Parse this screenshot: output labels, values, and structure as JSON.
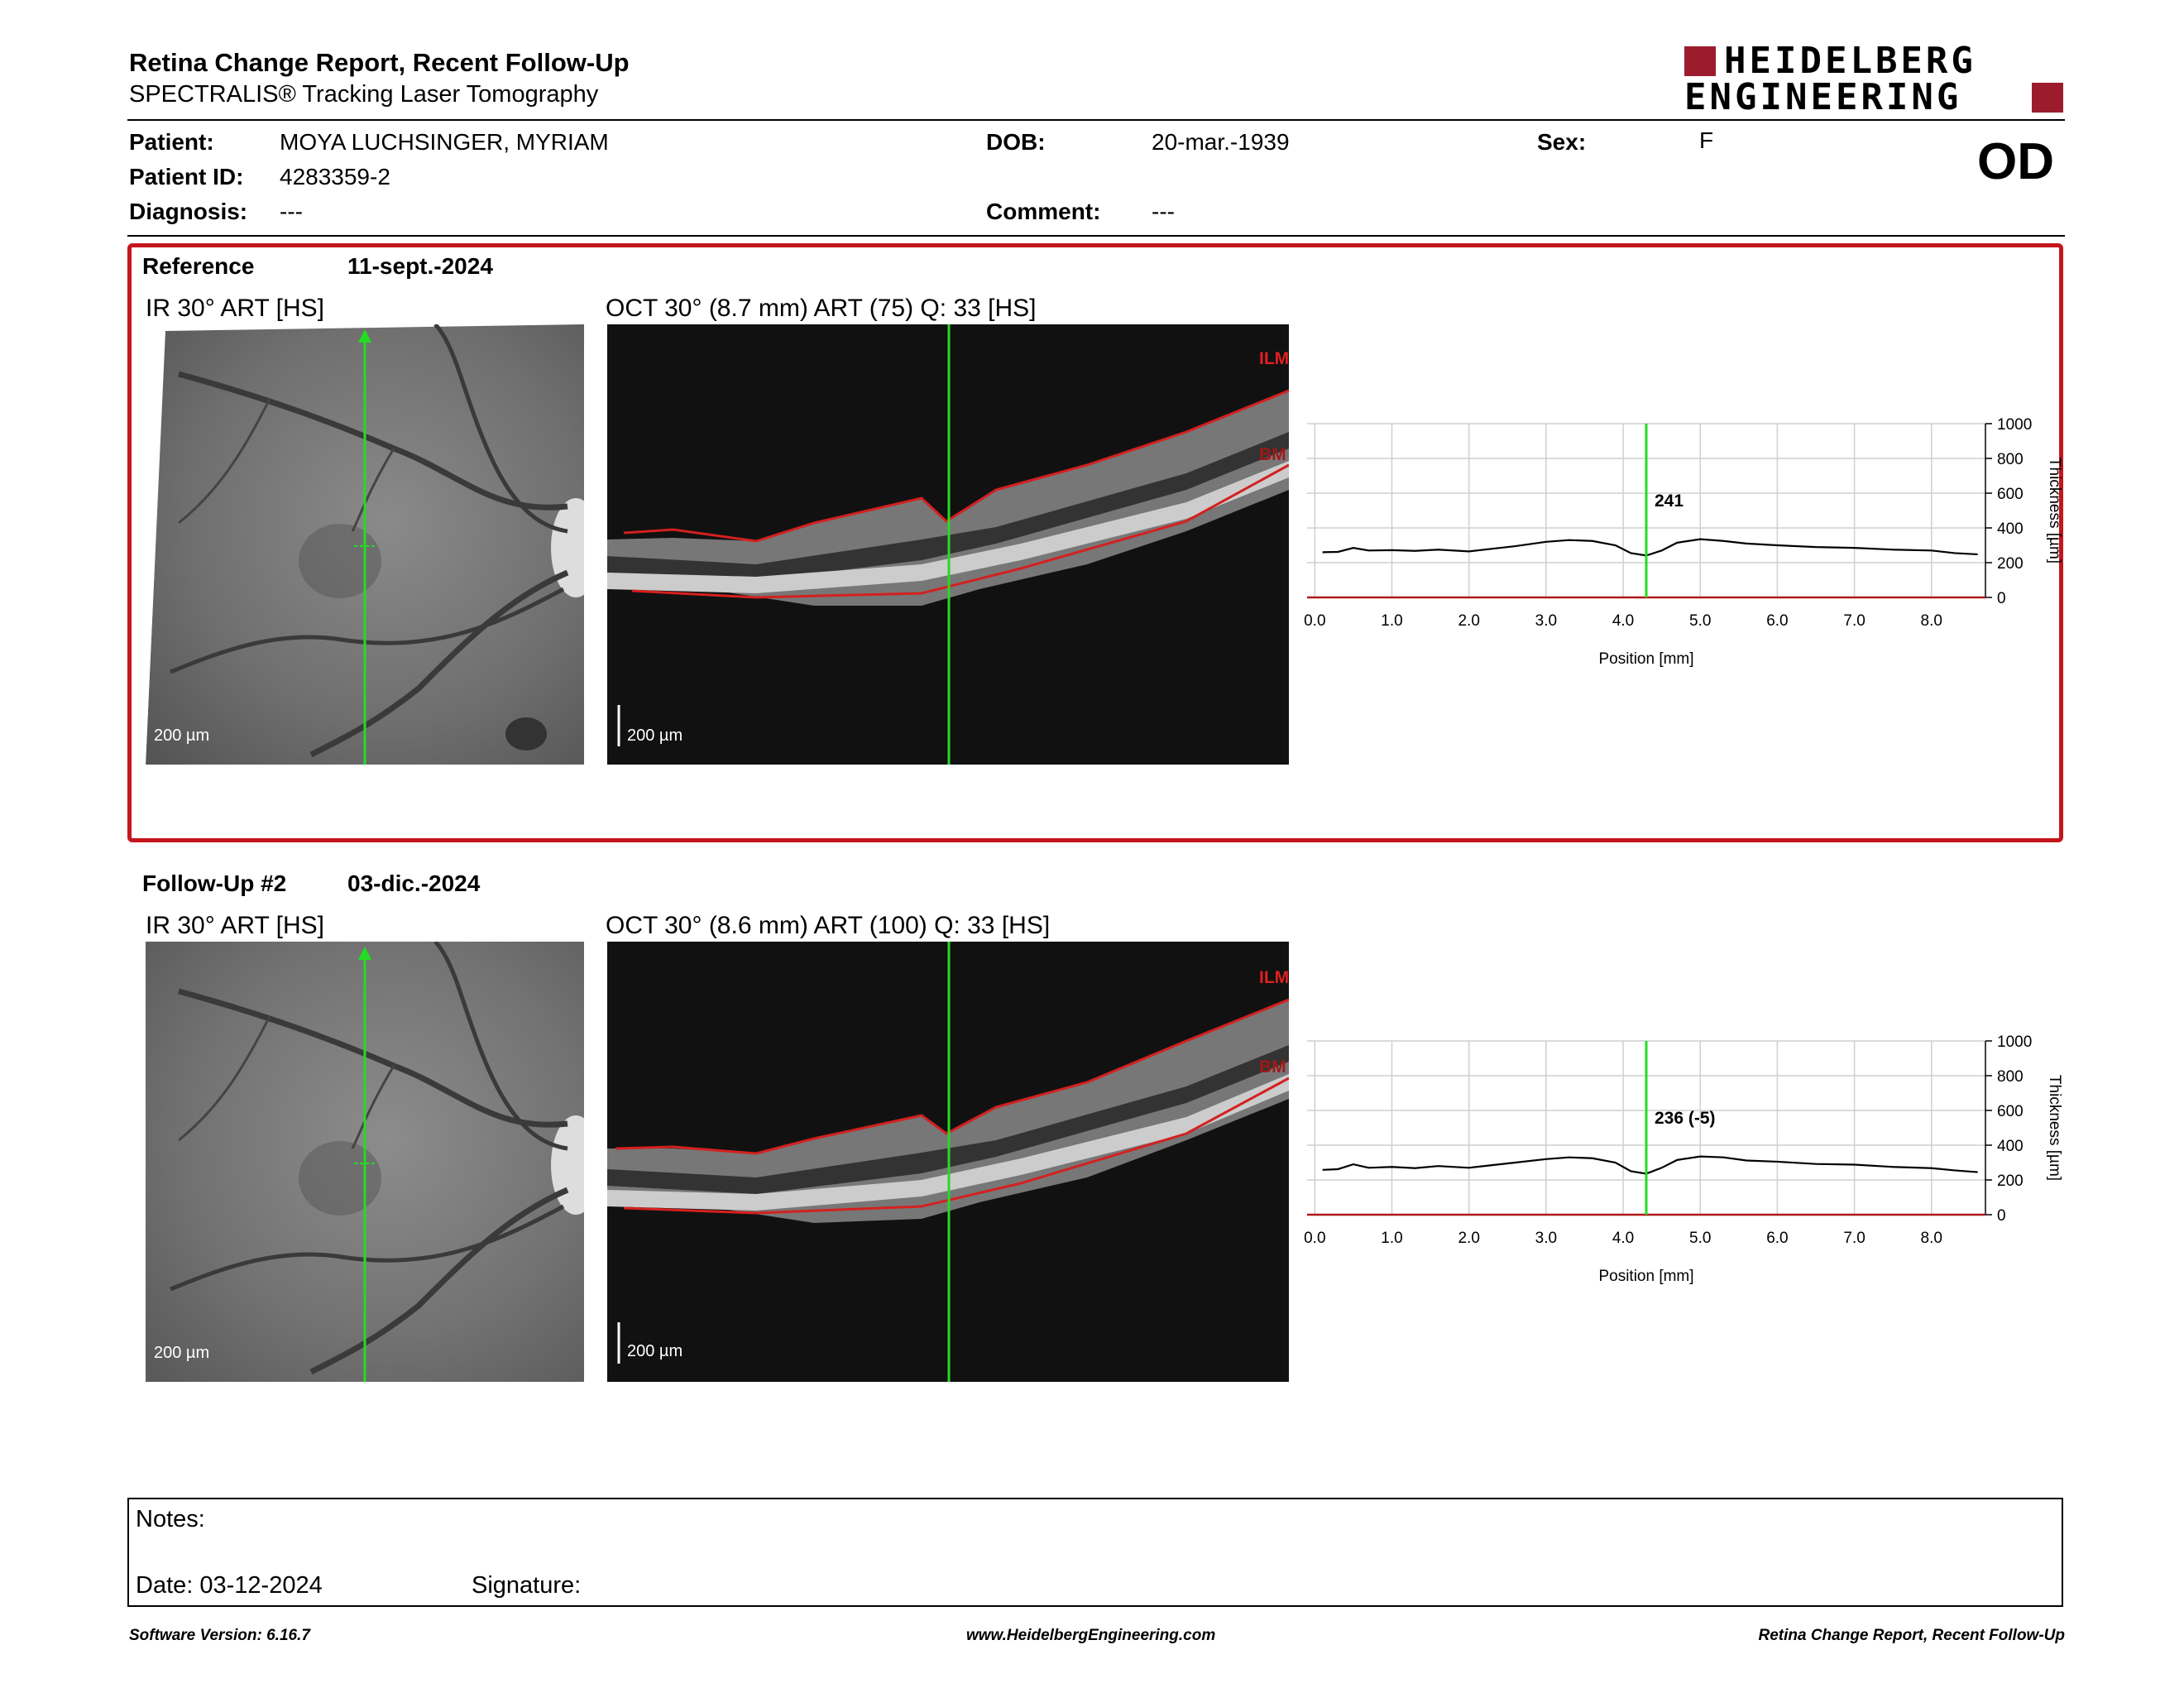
{
  "header": {
    "title": "Retina Change Report, Recent Follow-Up",
    "subtitle": "SPECTRALIS® Tracking Laser Tomography",
    "logo_line1": "HEIDELBERG",
    "logo_line2": "ENGINEERING",
    "brand_color": "#9c1c2e"
  },
  "patient": {
    "patient_label": "Patient:",
    "patient_value": "MOYA LUCHSINGER, MYRIAM",
    "id_label": "Patient ID:",
    "id_value": "4283359-2",
    "diagnosis_label": "Diagnosis:",
    "diagnosis_value": "---",
    "dob_label": "DOB:",
    "dob_value": "20-mar.-1939",
    "comment_label": "Comment:",
    "comment_value": "---",
    "sex_label": "Sex:",
    "sex_value": "F",
    "eye": "OD"
  },
  "reference": {
    "label": "Reference",
    "date": "11-sept.-2024",
    "ir_title": "IR 30° ART [HS]",
    "oct_title": "OCT 30° (8.7 mm) ART (75) Q: 33 [HS]",
    "scale_ir": "200 µm",
    "scale_oct": "200 µm",
    "ilm": "ILM",
    "bm": "BM"
  },
  "followup": {
    "label": "Follow-Up #2",
    "date": "03-dic.-2024",
    "ir_title": "IR 30° ART [HS]",
    "oct_title": "OCT 30° (8.6 mm) ART (100) Q: 33 [HS]",
    "scale_ir": "200 µm",
    "scale_oct": "200 µm",
    "ilm": "ILM",
    "bm": "BM"
  },
  "chart_data": [
    {
      "type": "line",
      "xlabel": "Position [mm]",
      "ylabel": "Thickness [µm]",
      "xlim": [
        -0.1,
        8.7
      ],
      "ylim": [
        0,
        1000
      ],
      "x_ticks": [
        "0.0",
        "1.0",
        "2.0",
        "3.0",
        "4.0",
        "5.0",
        "6.0",
        "7.0",
        "8.0"
      ],
      "y_ticks": [
        "0",
        "200",
        "400",
        "600",
        "800",
        "1000"
      ],
      "marker_x": 4.3,
      "marker_label": "241",
      "grid": true,
      "series": [
        {
          "x": [
            0.1,
            0.3,
            0.5,
            0.7,
            1.0,
            1.3,
            1.6,
            2.0,
            2.3,
            2.6,
            3.0,
            3.3,
            3.6,
            3.9,
            4.1,
            4.3,
            4.5,
            4.7,
            5.0,
            5.3,
            5.6,
            6.0,
            6.5,
            7.0,
            7.5,
            8.0,
            8.3,
            8.6
          ],
          "values": [
            260,
            262,
            285,
            270,
            272,
            268,
            275,
            265,
            280,
            295,
            320,
            330,
            325,
            300,
            255,
            241,
            270,
            315,
            335,
            325,
            310,
            300,
            290,
            285,
            275,
            270,
            255,
            248
          ]
        }
      ]
    },
    {
      "type": "line",
      "xlabel": "Position [mm]",
      "ylabel": "Thickness [µm]",
      "xlim": [
        -0.1,
        8.7
      ],
      "ylim": [
        0,
        1000
      ],
      "x_ticks": [
        "0.0",
        "1.0",
        "2.0",
        "3.0",
        "4.0",
        "5.0",
        "6.0",
        "7.0",
        "8.0"
      ],
      "y_ticks": [
        "0",
        "200",
        "400",
        "600",
        "800",
        "1000"
      ],
      "marker_x": 4.3,
      "marker_label": "236 (-5)",
      "grid": true,
      "series": [
        {
          "x": [
            0.1,
            0.3,
            0.5,
            0.7,
            1.0,
            1.3,
            1.6,
            2.0,
            2.3,
            2.6,
            3.0,
            3.3,
            3.6,
            3.9,
            4.1,
            4.3,
            4.5,
            4.7,
            5.0,
            5.3,
            5.6,
            6.0,
            6.5,
            7.0,
            7.5,
            8.0,
            8.3,
            8.6
          ],
          "values": [
            258,
            262,
            290,
            270,
            275,
            268,
            280,
            270,
            285,
            300,
            320,
            330,
            325,
            300,
            250,
            236,
            270,
            315,
            335,
            330,
            312,
            305,
            292,
            288,
            275,
            268,
            255,
            245
          ]
        }
      ]
    }
  ],
  "notes": {
    "notes_label": "Notes:",
    "date_label": "Date: 03-12-2024",
    "signature_label": "Signature:"
  },
  "footer": {
    "left": "Software Version: 6.16.7",
    "center": "www.HeidelbergEngineering.com",
    "right": "Retina Change Report, Recent Follow-Up"
  }
}
